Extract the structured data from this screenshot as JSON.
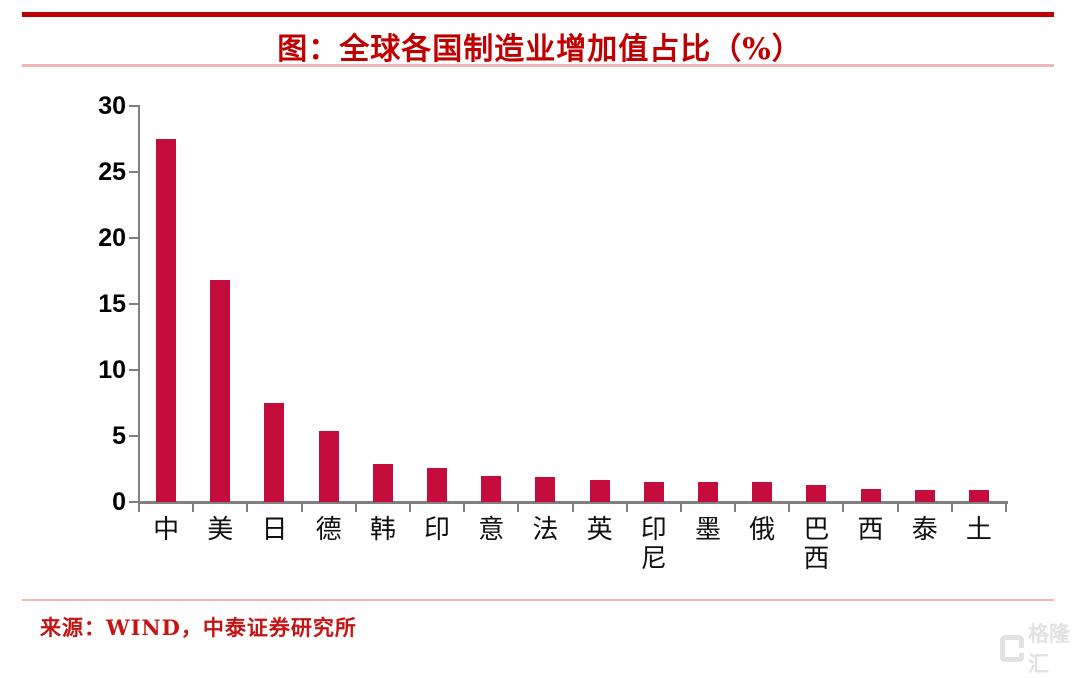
{
  "header": {
    "title": "图：全球各国制造业增加值占比（%）",
    "rule_color": "#c00000",
    "subrule_color": "#f2b6b6"
  },
  "chart_data": {
    "type": "bar",
    "title": "图：全球各国制造业增加值占比（%）",
    "categories": [
      "中",
      "美",
      "日",
      "德",
      "韩",
      "印",
      "意",
      "法",
      "英",
      "印尼",
      "墨",
      "俄",
      "巴西",
      "西",
      "泰",
      "土"
    ],
    "values": [
      27.5,
      16.8,
      7.5,
      5.4,
      2.9,
      2.6,
      2.0,
      1.9,
      1.7,
      1.55,
      1.5,
      1.5,
      1.25,
      1.0,
      0.9,
      0.9
    ],
    "xlabel": "",
    "ylabel": "",
    "ylim": [
      0,
      30
    ],
    "yticks": [
      0,
      5,
      10,
      15,
      20,
      25,
      30
    ],
    "grid": false,
    "legend": null,
    "bar_color": "#c40d3c",
    "axis_color": "#808080"
  },
  "footer": {
    "source": "来源：WIND，中泰证券研究所",
    "watermark_text": "格隆汇"
  }
}
